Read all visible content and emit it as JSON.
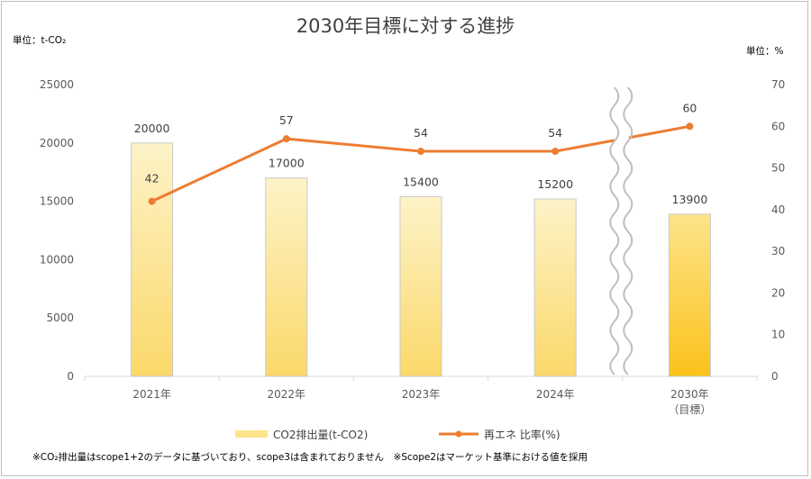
{
  "title": "2030年目標に対する進捗",
  "unit_left": "単位：t-CO₂",
  "unit_right": "単位：%",
  "footnote": "※CO₂排出量はscope1+2のデータに基づいており、scope3は含まれておりません　※Scope2はマーケット基準における値を採用",
  "colors": {
    "bar_top": "#fdf3c8",
    "bar_bottom": "#fbd86a",
    "bar_target_top": "#fde48a",
    "bar_target_bottom": "#fcc21a",
    "bar_border": "#c9c9c9",
    "line": "#ed7d31",
    "axis": "#d9d9d9"
  },
  "chart_data": {
    "type": "bar+line",
    "categories": [
      "2021年",
      "2022年",
      "2023年",
      "2024年",
      "2030年\n（目標）"
    ],
    "series": [
      {
        "name": "CO2排出量(t-CO2)",
        "type": "bar",
        "axis": "left",
        "values": [
          20000,
          17000,
          15400,
          15200,
          13900
        ],
        "labels": [
          "20000",
          "17000",
          "15400",
          "15200",
          "13900"
        ]
      },
      {
        "name": "再エネ 比率(%)",
        "type": "line",
        "axis": "right",
        "values": [
          42,
          57,
          54,
          54,
          60
        ],
        "labels": [
          "42",
          "57",
          "54",
          "54",
          "60"
        ]
      }
    ],
    "y_left": {
      "min": 0,
      "max": 25000,
      "ticks": [
        0,
        5000,
        10000,
        15000,
        20000,
        25000
      ]
    },
    "y_right": {
      "min": 0,
      "max": 70,
      "ticks": [
        0,
        10,
        20,
        30,
        40,
        50,
        60,
        70
      ]
    },
    "axis_break": "between 2024年 and 2030年",
    "legend_position": "bottom",
    "grid": false
  }
}
